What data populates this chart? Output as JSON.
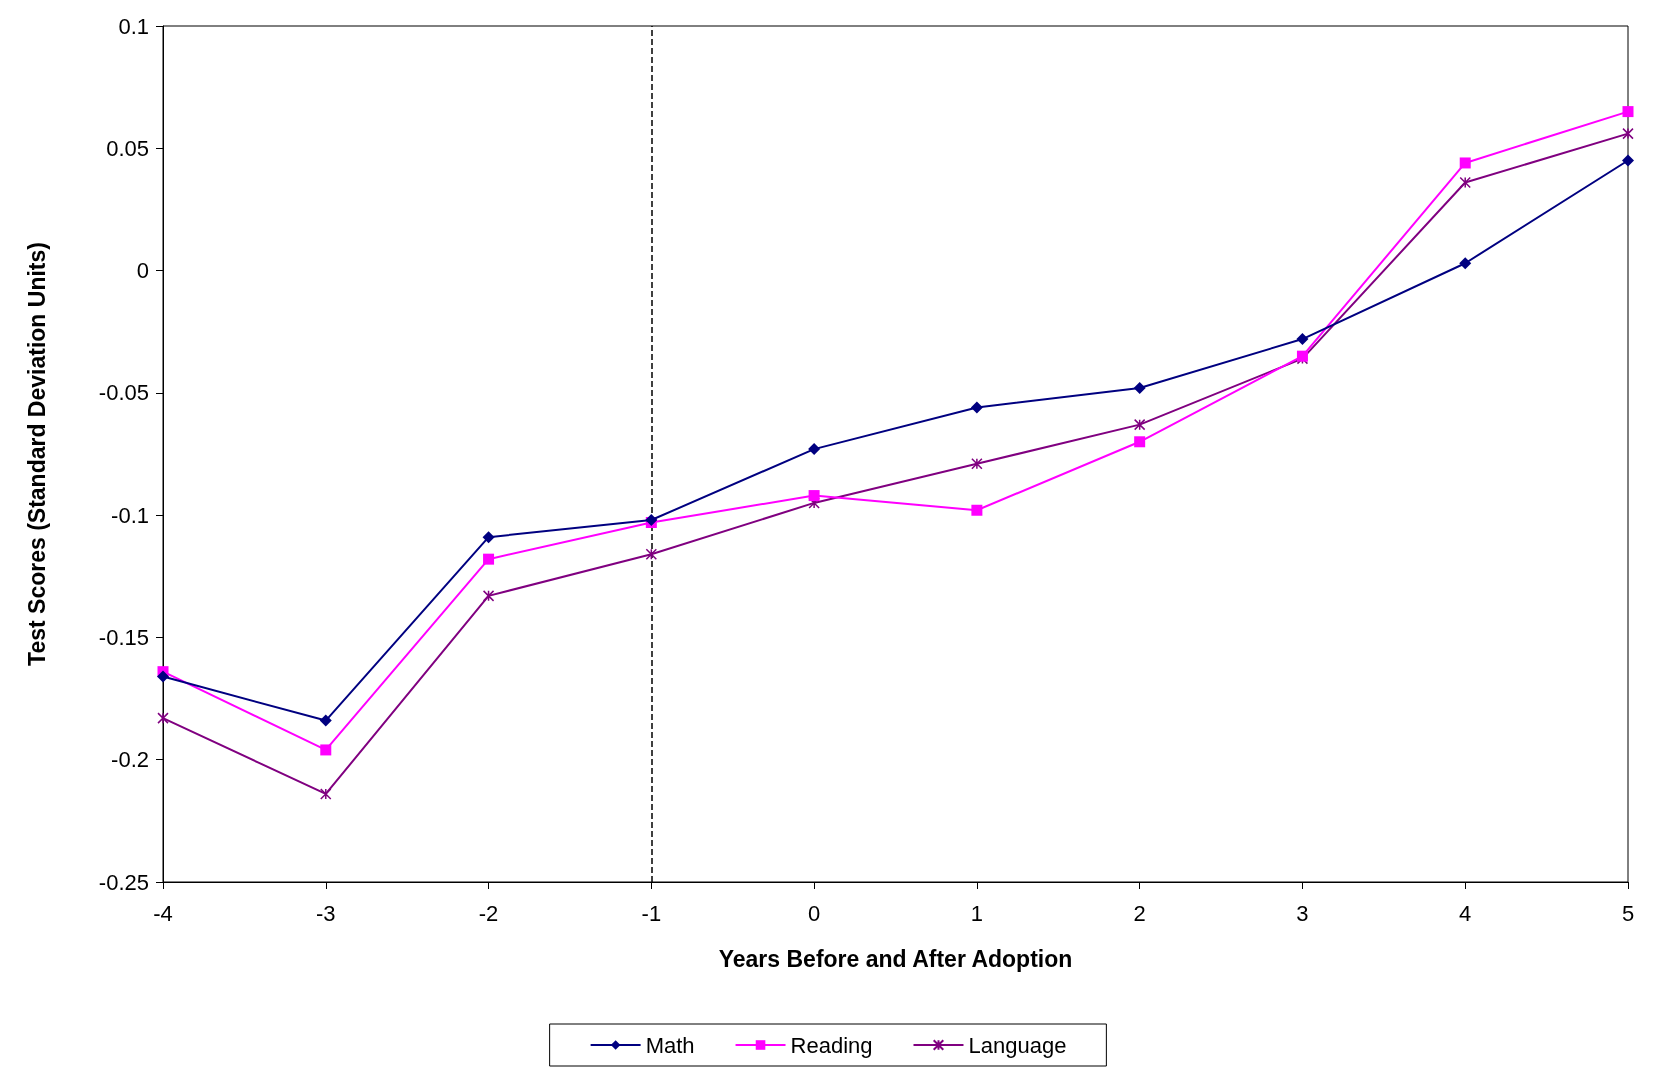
{
  "chart_data": {
    "type": "line",
    "xlabel": "Years Before and After Adoption",
    "ylabel": "Test Scores (Standard Deviation Units)",
    "x": [
      -4,
      -3,
      -2,
      -1,
      0,
      1,
      2,
      3,
      4,
      5
    ],
    "series": [
      {
        "name": "Math",
        "color": "#000080",
        "marker": "diamond",
        "values": [
          -0.166,
          -0.184,
          -0.109,
          -0.102,
          -0.073,
          -0.056,
          -0.048,
          -0.028,
          0.003,
          0.045
        ]
      },
      {
        "name": "Reading",
        "color": "#ff00ff",
        "marker": "square",
        "values": [
          -0.164,
          -0.196,
          -0.118,
          -0.103,
          -0.092,
          -0.098,
          -0.07,
          -0.035,
          0.044,
          0.065
        ]
      },
      {
        "name": "Language",
        "color": "#800080",
        "marker": "cross",
        "values": [
          -0.183,
          -0.214,
          -0.133,
          -0.116,
          -0.095,
          -0.079,
          -0.063,
          -0.036,
          0.036,
          0.056
        ]
      }
    ],
    "xlim": [
      -4,
      5
    ],
    "xticks": [
      -4,
      -3,
      -2,
      -1,
      0,
      1,
      2,
      3,
      4,
      5
    ],
    "ylim": [
      -0.25,
      0.1
    ],
    "yticks": [
      -0.25,
      -0.2,
      -0.15,
      -0.1,
      -0.05,
      0,
      0.05,
      0.1
    ],
    "ref_lines": [
      {
        "axis": "x",
        "value": -1,
        "color": "#000000",
        "line_style": "dashed"
      }
    ],
    "grid": false,
    "legend": "bottom"
  }
}
